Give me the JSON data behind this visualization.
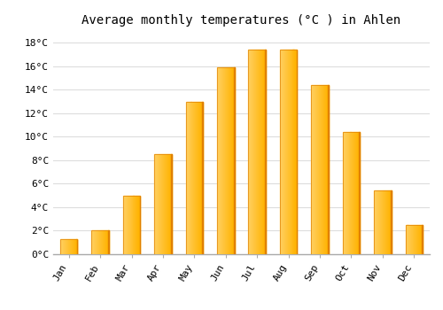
{
  "title": "Average monthly temperatures (°C ) in Ahlen",
  "months": [
    "Jan",
    "Feb",
    "Mar",
    "Apr",
    "May",
    "Jun",
    "Jul",
    "Aug",
    "Sep",
    "Oct",
    "Nov",
    "Dec"
  ],
  "values": [
    1.3,
    2.0,
    5.0,
    8.5,
    13.0,
    15.9,
    17.4,
    17.4,
    14.4,
    10.4,
    5.4,
    2.5
  ],
  "bar_color_main": "#FFB300",
  "bar_color_light": "#FFD060",
  "bar_color_dark": "#E08000",
  "background_color": "#FFFFFF",
  "grid_color": "#DDDDDD",
  "ylim": [
    0,
    19
  ],
  "yticks": [
    0,
    2,
    4,
    6,
    8,
    10,
    12,
    14,
    16,
    18
  ],
  "ytick_labels": [
    "0°C",
    "2°C",
    "4°C",
    "6°C",
    "8°C",
    "10°C",
    "12°C",
    "14°C",
    "16°C",
    "18°C"
  ],
  "title_fontsize": 10,
  "tick_fontsize": 8,
  "bar_width": 0.55
}
